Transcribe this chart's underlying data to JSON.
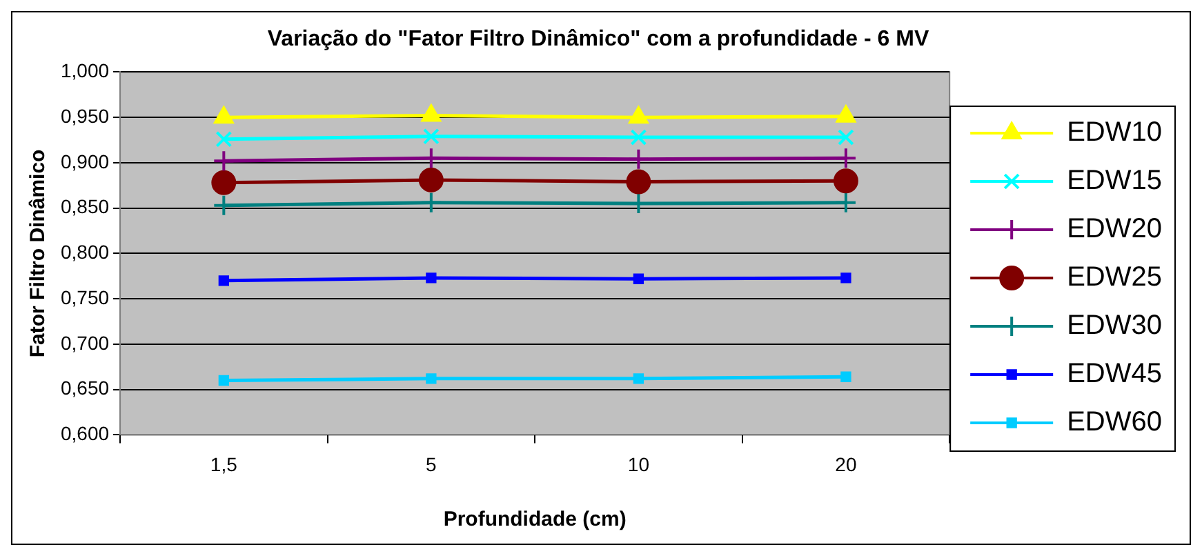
{
  "chart_data": {
    "type": "line",
    "title": "Variação do \"Fator Filtro Dinâmico\" com a profundidade - 6 MV",
    "xlabel": "Profundidade (cm)",
    "ylabel": "Fator Filtro Dinâmico",
    "categories": [
      "1,5",
      "5",
      "10",
      "20"
    ],
    "ylim": [
      0.6,
      1.0
    ],
    "yticks": [
      {
        "value": 0.6,
        "label": "0,600"
      },
      {
        "value": 0.65,
        "label": "0,650"
      },
      {
        "value": 0.7,
        "label": "0,700"
      },
      {
        "value": 0.75,
        "label": "0,750"
      },
      {
        "value": 0.8,
        "label": "0,800"
      },
      {
        "value": 0.85,
        "label": "0,850"
      },
      {
        "value": 0.9,
        "label": "0,900"
      },
      {
        "value": 0.95,
        "label": "0,950"
      },
      {
        "value": 1.0,
        "label": "1,000"
      }
    ],
    "grid": "y",
    "legend": "right",
    "series": [
      {
        "name": "EDW10",
        "color": "#ffff00",
        "marker": "triangle",
        "values": [
          0.95,
          0.952,
          0.95,
          0.951
        ]
      },
      {
        "name": "EDW15",
        "color": "#00ffff",
        "marker": "x",
        "values": [
          0.926,
          0.929,
          0.928,
          0.928
        ]
      },
      {
        "name": "EDW20",
        "color": "#800080",
        "marker": "cross",
        "values": [
          0.902,
          0.905,
          0.904,
          0.905
        ]
      },
      {
        "name": "EDW25",
        "color": "#800000",
        "marker": "circle",
        "values": [
          0.878,
          0.881,
          0.879,
          0.88
        ]
      },
      {
        "name": "EDW30",
        "color": "#008080",
        "marker": "cross",
        "values": [
          0.853,
          0.856,
          0.855,
          0.856
        ]
      },
      {
        "name": "EDW45",
        "color": "#0000ff",
        "marker": "square",
        "values": [
          0.77,
          0.773,
          0.772,
          0.773
        ]
      },
      {
        "name": "EDW60",
        "color": "#00ccff",
        "marker": "square",
        "values": [
          0.66,
          0.662,
          0.662,
          0.664
        ]
      }
    ]
  }
}
